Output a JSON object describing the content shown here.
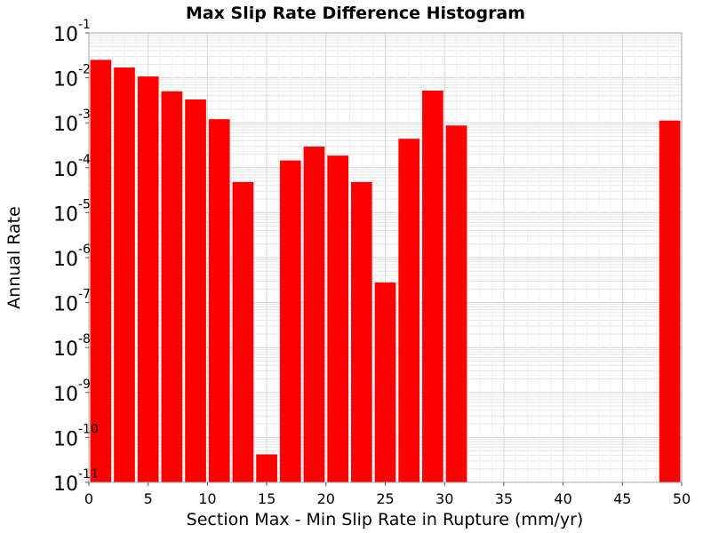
{
  "chart_data": {
    "type": "bar",
    "title": "Max Slip Rate Difference Histogram",
    "xlabel": "Section Max - Min Slip Rate in Rupture (mm/yr)",
    "ylabel": "Annual Rate",
    "xlim": [
      0,
      50
    ],
    "ylim": [
      1e-11,
      0.1
    ],
    "yscale": "log",
    "grid": true,
    "bar_color": "#ff0000",
    "bin_width": 2,
    "xticks": [
      0,
      5,
      10,
      15,
      20,
      25,
      30,
      35,
      40,
      45,
      50
    ],
    "yticks": [
      {
        "value": 0.1,
        "base": "10",
        "exp": "-1"
      },
      {
        "value": 0.01,
        "base": "10",
        "exp": "-2"
      },
      {
        "value": 0.001,
        "base": "10",
        "exp": "-3"
      },
      {
        "value": 0.0001,
        "base": "10",
        "exp": "-4"
      },
      {
        "value": 1e-05,
        "base": "10",
        "exp": "-5"
      },
      {
        "value": 1e-06,
        "base": "10",
        "exp": "-6"
      },
      {
        "value": 1e-07,
        "base": "10",
        "exp": "-7"
      },
      {
        "value": 1e-08,
        "base": "10",
        "exp": "-8"
      },
      {
        "value": 1e-09,
        "base": "10",
        "exp": "-9"
      },
      {
        "value": 1e-10,
        "base": "10",
        "exp": "-10"
      },
      {
        "value": 1e-11,
        "base": "10",
        "exp": "-11"
      }
    ],
    "bins": [
      {
        "x": 1,
        "value": 0.0251
      },
      {
        "x": 3,
        "value": 0.017
      },
      {
        "x": 5,
        "value": 0.0107
      },
      {
        "x": 7,
        "value": 0.005
      },
      {
        "x": 9,
        "value": 0.0033
      },
      {
        "x": 11,
        "value": 0.0012
      },
      {
        "x": 13,
        "value": 4.8e-05
      },
      {
        "x": 15,
        "value": 4.2e-11
      },
      {
        "x": 17,
        "value": 0.000145
      },
      {
        "x": 19,
        "value": 0.000295
      },
      {
        "x": 21,
        "value": 0.000186
      },
      {
        "x": 23,
        "value": 4.8e-05
      },
      {
        "x": 25,
        "value": 2.8e-07
      },
      {
        "x": 27,
        "value": 0.00044
      },
      {
        "x": 29,
        "value": 0.0052
      },
      {
        "x": 31,
        "value": 0.00087
      },
      {
        "x": 49,
        "value": 0.00112
      }
    ]
  }
}
